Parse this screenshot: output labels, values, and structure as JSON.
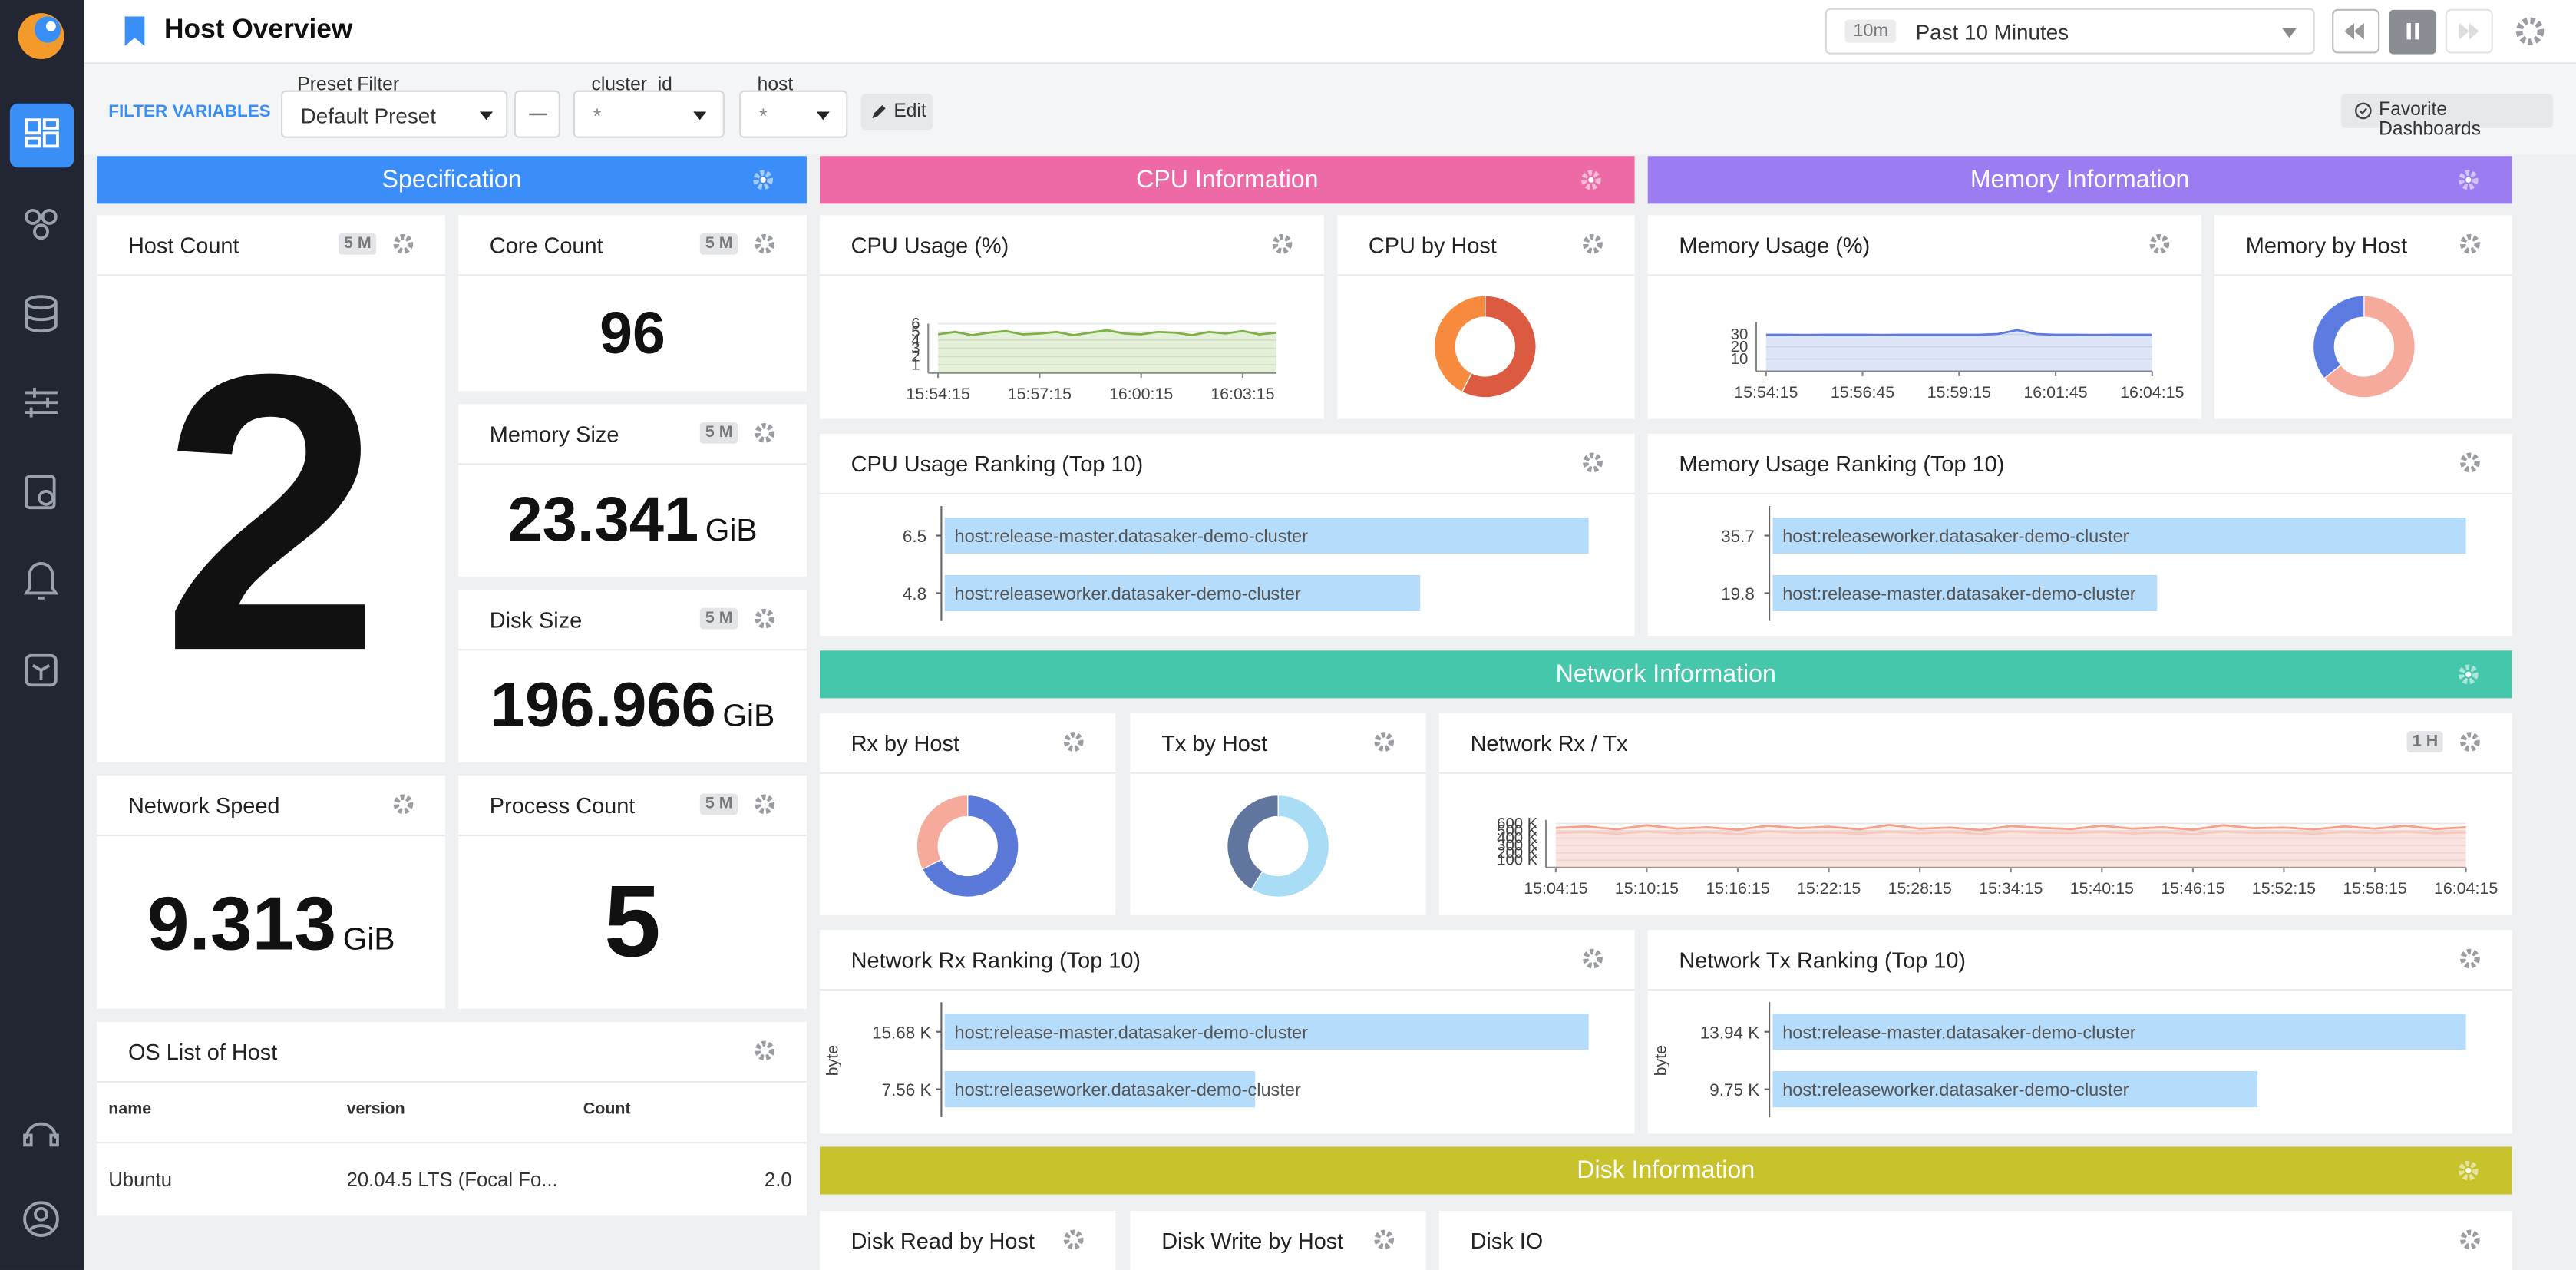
{
  "header": {
    "title": "Host Overview",
    "time_badge": "10m",
    "time_range": "Past 10 Minutes"
  },
  "filters": {
    "label": "FILTER VARIABLES",
    "preset_label": "Preset Filter",
    "preset_value": "Default Preset",
    "cluster_label": "cluster_id",
    "cluster_value": "*",
    "host_label": "host",
    "host_value": "*",
    "edit": "Edit",
    "favorite": "Favorite Dashboards"
  },
  "sections": {
    "spec": "Specification",
    "cpu": "CPU Information",
    "memory": "Memory Information",
    "network": "Network Information",
    "disk": "Disk Information"
  },
  "stats": [
    {
      "title": "Host Count",
      "badge": "5 M",
      "value": 2
    },
    {
      "title": "Core Count",
      "badge": "5 M",
      "value": 96
    },
    {
      "title": "Memory Size",
      "badge": "5 M",
      "value": 23.341,
      "unit": "GiB"
    },
    {
      "title": "Disk Size",
      "badge": "5 M",
      "value": 196.966,
      "unit": "GiB"
    },
    {
      "title": "Network Speed",
      "value": 9.313,
      "unit": "GiB"
    },
    {
      "title": "Process Count",
      "badge": "5 M",
      "value": 5
    }
  ],
  "os_table": {
    "title": "OS List of Host",
    "columns": [
      "name",
      "version",
      "Count"
    ],
    "rows": [
      [
        "Ubuntu",
        "20.04.5 LTS (Focal Fo...",
        "2.0"
      ]
    ]
  },
  "charts": {
    "cpu_usage": {
      "type": "line",
      "title": "CPU Usage (%)",
      "color": "#7cb342",
      "categories": [
        "15:54:15",
        null,
        null,
        null,
        null,
        null,
        "15:57:15",
        null,
        null,
        null,
        null,
        null,
        "16:00:15",
        null,
        null,
        null,
        null,
        null,
        "16:03:15",
        null,
        null
      ],
      "series": [
        {
          "color": "#7cb342",
          "values": [
            4.7,
            5.0,
            4.6,
            4.9,
            5.1,
            4.7,
            4.8,
            5.0,
            4.6,
            4.9,
            5.2,
            4.8,
            4.7,
            5.0,
            4.9,
            4.6,
            5.0,
            4.8,
            5.1,
            4.7,
            4.9
          ]
        }
      ],
      "ylim": [
        0,
        6
      ],
      "yticks": [
        1,
        2,
        3,
        4,
        5,
        6
      ],
      "grid": true
    },
    "cpu_by_host": {
      "type": "pie",
      "title": "CPU by Host",
      "values": [
        6.5,
        4.8
      ],
      "colors": [
        "#dc5a40",
        "#f78a3d"
      ]
    },
    "memory_usage": {
      "type": "line",
      "title": "Memory Usage (%)",
      "categories": [
        "15:54:15",
        null,
        null,
        null,
        null,
        "15:56:45",
        null,
        null,
        null,
        null,
        "15:59:15",
        null,
        null,
        null,
        null,
        "16:01:45",
        null,
        null,
        null,
        null,
        "16:04:15"
      ],
      "series": [
        {
          "color": "#5b7be0",
          "values": [
            29.6,
            29.6,
            29.5,
            29.6,
            29.6,
            29.6,
            29.5,
            29.6,
            29.6,
            29.6,
            29.6,
            29.6,
            30.2,
            33.5,
            30.2,
            29.6,
            29.6,
            29.5,
            29.6,
            29.6,
            29.6
          ]
        }
      ],
      "ylim": [
        0,
        40
      ],
      "yticks": [
        10,
        20,
        30
      ],
      "grid": true
    },
    "memory_by_host": {
      "type": "pie",
      "title": "Memory by Host",
      "values": [
        35.7,
        19.8
      ],
      "colors": [
        "#f6aa9c",
        "#5b7be0"
      ]
    },
    "cpu_ranking": {
      "type": "bar",
      "title": "CPU Usage Ranking (Top 10)",
      "categories": [
        "host:release-master.datasaker-demo-cluster",
        "host:releaseworker.datasaker-demo-cluster"
      ],
      "values": [
        6.5,
        4.8
      ],
      "xlim": [
        0,
        6.5
      ],
      "color": "#b6dcfb"
    },
    "memory_ranking": {
      "type": "bar",
      "title": "Memory Usage Ranking (Top 10)",
      "categories": [
        "host:releaseworker.datasaker-demo-cluster",
        "host:release-master.datasaker-demo-cluster"
      ],
      "values": [
        35.7,
        19.8
      ],
      "xlim": [
        0,
        35.7
      ],
      "color": "#b6dcfb"
    },
    "rx_by_host": {
      "type": "pie",
      "title": "Rx by Host",
      "values": [
        15680,
        7560
      ],
      "colors": [
        "#5b79d9",
        "#f6aa9c"
      ]
    },
    "tx_by_host": {
      "type": "pie",
      "title": "Tx by Host",
      "values": [
        13940,
        9750
      ],
      "colors": [
        "#a9ddf6",
        "#60769e"
      ]
    },
    "network_rxtx": {
      "type": "line",
      "title": "Network Rx / Tx",
      "badge": "1 H",
      "categories": [
        "15:04:15",
        null,
        null,
        "15:10:15",
        null,
        null,
        "15:16:15",
        null,
        null,
        "15:22:15",
        null,
        null,
        "15:28:15",
        null,
        null,
        "15:34:15",
        null,
        null,
        "15:40:15",
        null,
        null,
        "15:46:15",
        null,
        null,
        "15:52:15",
        null,
        null,
        "15:58:15",
        null,
        null,
        "16:04:15"
      ],
      "series": [
        {
          "color": "#f4a08a",
          "values": [
            540000,
            560000,
            520000,
            575000,
            530000,
            550000,
            515000,
            570000,
            535000,
            555000,
            520000,
            580000,
            530000,
            545000,
            510000,
            565000,
            540000,
            525000,
            570000,
            530000,
            550000,
            515000,
            575000,
            535000,
            545000,
            520000,
            560000,
            530000,
            570000,
            525000,
            550000
          ]
        },
        {
          "color": "#f7c8bc",
          "values": [
            470000,
            485000,
            460000,
            490000,
            465000,
            480000,
            455000,
            495000,
            470000,
            478000,
            462000,
            488000,
            466000,
            482000,
            458000,
            492000,
            472000,
            468000,
            486000,
            464000,
            480000,
            456000,
            490000,
            470000,
            476000,
            460000,
            484000,
            468000,
            489000,
            463000,
            478000
          ]
        }
      ],
      "ylim": [
        0,
        650000
      ],
      "yticks": [
        {
          "value": 100000,
          "label": "100 K"
        },
        {
          "value": 200000,
          "label": "200 K"
        },
        {
          "value": 300000,
          "label": "300 K"
        },
        {
          "value": 400000,
          "label": "400 K"
        },
        {
          "value": 500000,
          "label": "500 K"
        },
        {
          "value": 600000,
          "label": "600 K"
        }
      ],
      "grid": true
    },
    "rx_ranking": {
      "type": "bar",
      "title": "Network Rx Ranking (Top 10)",
      "y_label": "byte",
      "categories": [
        "host:release-master.datasaker-demo-cluster",
        "host:releaseworker.datasaker-demo-cluster"
      ],
      "values": [
        15680,
        7560
      ],
      "value_labels": [
        "15.68 K",
        "7.56 K"
      ],
      "xlim": [
        0,
        15680
      ],
      "color": "#b6dcfb"
    },
    "tx_ranking": {
      "type": "bar",
      "title": "Network Tx Ranking (Top 10)",
      "y_label": "byte",
      "categories": [
        "host:release-master.datasaker-demo-cluster",
        "host:releaseworker.datasaker-demo-cluster"
      ],
      "values": [
        13940,
        9750
      ],
      "value_labels": [
        "13.94 K",
        "9.75 K"
      ],
      "xlim": [
        0,
        13940
      ],
      "color": "#b6dcfb"
    },
    "disk_read": {
      "title": "Disk Read by Host"
    },
    "disk_write": {
      "title": "Disk Write by Host"
    },
    "disk_io": {
      "title": "Disk IO"
    }
  }
}
